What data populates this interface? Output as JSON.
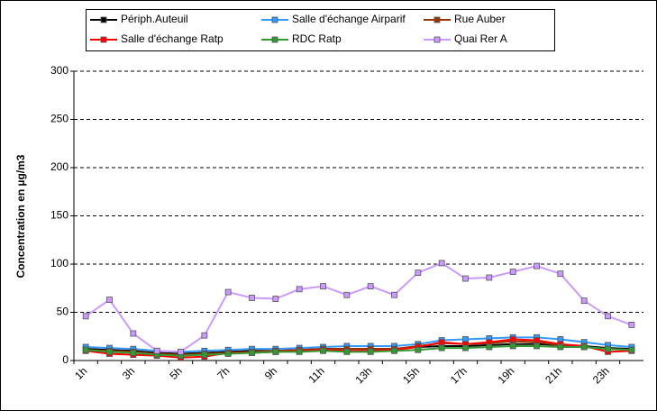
{
  "chart_data": {
    "type": "line",
    "y_label": "Concentration en µg/m3",
    "categories": [
      "1h",
      null,
      "3h",
      null,
      "5h",
      null,
      "7h",
      null,
      "9h",
      null,
      "11h",
      null,
      "13h",
      null,
      "15h",
      null,
      "17h",
      null,
      "19h",
      null,
      "21h",
      null,
      "23h",
      null
    ],
    "ylim": [
      0,
      300
    ],
    "yticks": [
      0,
      50,
      100,
      150,
      200,
      250,
      300
    ],
    "grid": true,
    "series": [
      {
        "name": "Périph.Auteuil",
        "color": "#000000",
        "values": [
          12,
          11,
          10,
          8,
          7,
          8,
          9,
          10,
          10,
          11,
          12,
          12,
          12,
          12,
          14,
          15,
          15,
          16,
          17,
          17,
          16,
          15,
          13,
          12
        ]
      },
      {
        "name": "Salle d'échange Airparif",
        "color": "#3399ff",
        "values": [
          14,
          13,
          12,
          10,
          9,
          10,
          11,
          12,
          12,
          13,
          14,
          15,
          15,
          15,
          17,
          21,
          22,
          23,
          24,
          24,
          22,
          19,
          16,
          14
        ]
      },
      {
        "name": "Rue Auber",
        "color": "#993300",
        "values": [
          11,
          10,
          9,
          7,
          6,
          7,
          8,
          9,
          10,
          11,
          12,
          12,
          12,
          12,
          15,
          18,
          17,
          18,
          20,
          19,
          16,
          14,
          12,
          11
        ]
      },
      {
        "name": "Salle d'échange Ratp",
        "color": "#ff0000",
        "values": [
          10,
          7,
          6,
          5,
          3,
          4,
          8,
          8,
          9,
          10,
          11,
          10,
          10,
          11,
          14,
          19,
          17,
          19,
          22,
          21,
          17,
          15,
          9,
          10
        ]
      },
      {
        "name": "RDC Ratp",
        "color": "#339933",
        "values": [
          11,
          9,
          8,
          6,
          5,
          6,
          7,
          8,
          9,
          9,
          10,
          9,
          9,
          10,
          11,
          13,
          13,
          14,
          15,
          15,
          14,
          14,
          12,
          11
        ]
      },
      {
        "name": "Quai Rer A",
        "color": "#cc99ff",
        "values": [
          46,
          63,
          28,
          10,
          9,
          26,
          71,
          65,
          64,
          74,
          77,
          68,
          77,
          68,
          91,
          101,
          85,
          86,
          92,
          98,
          90,
          62,
          46,
          37
        ]
      }
    ]
  }
}
